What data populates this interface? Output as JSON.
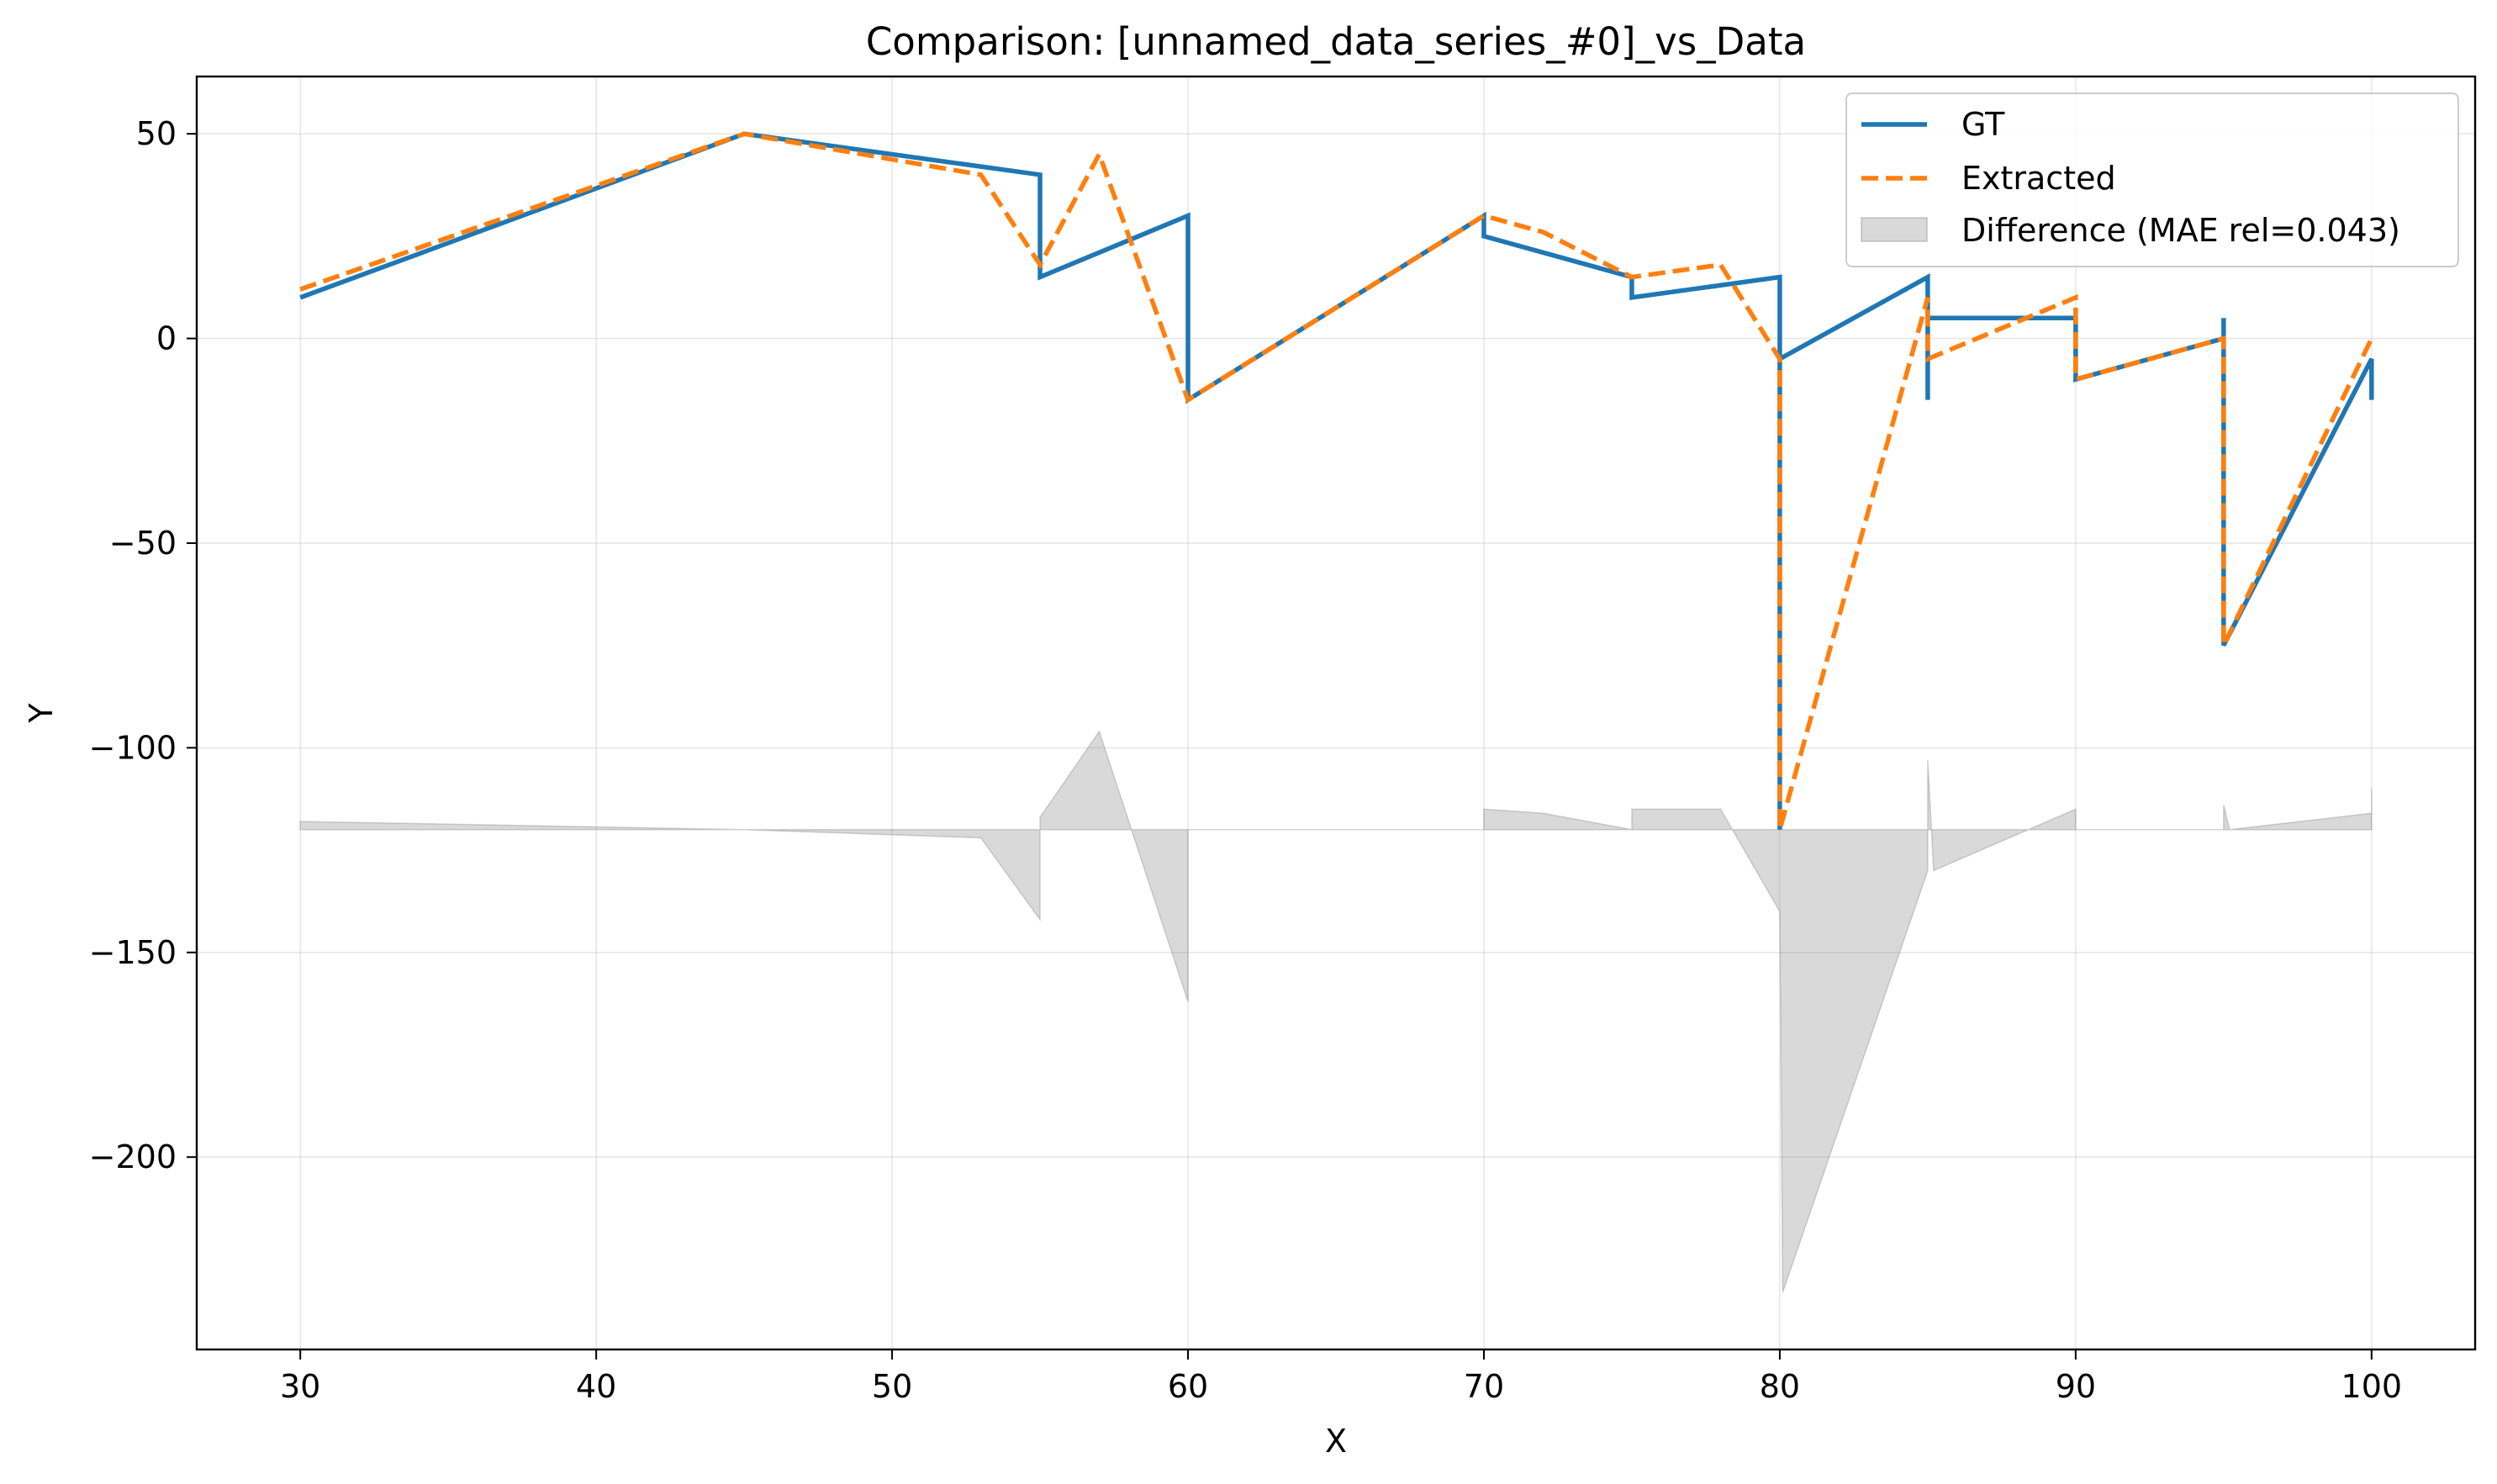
{
  "chart_data": {
    "type": "line",
    "title": "Comparison: [unnamed_data_series_#0]_vs_Data",
    "xlabel": "X",
    "ylabel": "Y",
    "xlim": [
      26.5,
      103.5
    ],
    "ylim": [
      -247,
      64
    ],
    "x_ticks": [
      30,
      40,
      50,
      60,
      70,
      80,
      90,
      100
    ],
    "y_ticks": [
      50,
      0,
      -50,
      -100,
      -150,
      -200
    ],
    "x_tick_labels": [
      "30",
      "40",
      "50",
      "60",
      "70",
      "80",
      "90",
      "100"
    ],
    "y_tick_labels": [
      "50",
      "0",
      "−50",
      "−100",
      "−150",
      "−200"
    ],
    "grid": true,
    "legend_position": "top-right",
    "series": [
      {
        "name": "GT",
        "style": "solid",
        "color": "#1f77b4",
        "points": [
          [
            30,
            10
          ],
          [
            45,
            50
          ],
          [
            55,
            40
          ],
          [
            55,
            15
          ],
          [
            60,
            30
          ],
          [
            60,
            -15
          ],
          [
            70,
            30
          ],
          [
            70,
            25
          ],
          [
            75,
            15
          ],
          [
            75,
            10
          ],
          [
            80,
            15
          ],
          [
            80,
            -120
          ],
          [
            80,
            -5
          ],
          [
            85,
            15
          ],
          [
            85,
            -15
          ],
          [
            85,
            5
          ],
          [
            90,
            5
          ],
          [
            90,
            -10
          ],
          [
            95,
            0
          ],
          [
            95,
            5
          ],
          [
            95,
            -75
          ],
          [
            100,
            -5
          ],
          [
            100,
            -15
          ]
        ]
      },
      {
        "name": "Extracted",
        "style": "dashed",
        "color": "#ff7f0e",
        "points": [
          [
            30,
            12
          ],
          [
            45,
            50
          ],
          [
            53,
            40
          ],
          [
            55,
            18
          ],
          [
            57,
            45
          ],
          [
            60,
            -15
          ],
          [
            70,
            30
          ],
          [
            72,
            26
          ],
          [
            75,
            15
          ],
          [
            78,
            18
          ],
          [
            80,
            -5
          ],
          [
            80,
            -120
          ],
          [
            85,
            10
          ],
          [
            85,
            -5
          ],
          [
            90,
            10
          ],
          [
            90,
            -10
          ],
          [
            95,
            0
          ],
          [
            95,
            -75
          ],
          [
            100,
            0
          ]
        ]
      }
    ],
    "difference": {
      "name": "Difference (MAE rel=0.043)",
      "color": "#808080",
      "baseline": -120,
      "points": [
        [
          30,
          -118
        ],
        [
          45,
          -120
        ],
        [
          53,
          -122
        ],
        [
          55,
          -142
        ],
        [
          55,
          -117
        ],
        [
          57,
          -96
        ],
        [
          60,
          -162
        ],
        [
          60,
          -120
        ],
        [
          70,
          -120
        ],
        [
          70,
          -115
        ],
        [
          72,
          -116
        ],
        [
          75,
          -120
        ],
        [
          75,
          -115
        ],
        [
          78,
          -115
        ],
        [
          80,
          -140
        ],
        [
          80.1,
          -233
        ],
        [
          85,
          -130
        ],
        [
          85,
          -103
        ],
        [
          85.2,
          -130
        ],
        [
          90,
          -115
        ],
        [
          90,
          -120
        ],
        [
          95,
          -120
        ],
        [
          95,
          -114
        ],
        [
          95.2,
          -120
        ],
        [
          100,
          -116
        ],
        [
          100,
          -110
        ],
        [
          100,
          -120
        ]
      ]
    }
  }
}
